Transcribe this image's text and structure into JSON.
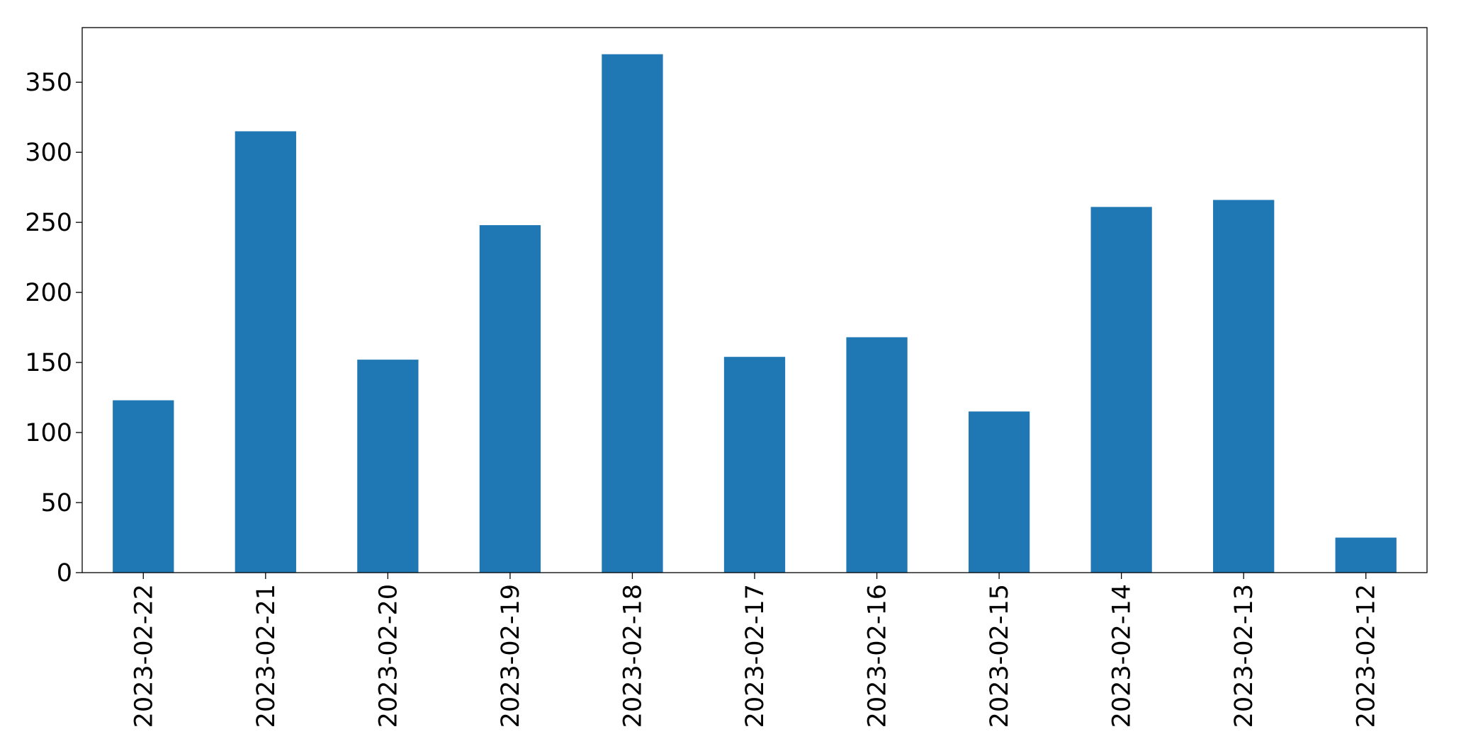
{
  "chart_data": {
    "type": "bar",
    "categories": [
      "2023-02-22",
      "2023-02-21",
      "2023-02-20",
      "2023-02-19",
      "2023-02-18",
      "2023-02-17",
      "2023-02-16",
      "2023-02-15",
      "2023-02-14",
      "2023-02-13",
      "2023-02-12"
    ],
    "values": [
      123,
      315,
      152,
      248,
      370,
      154,
      168,
      115,
      261,
      266,
      25
    ],
    "color": "#1f77b4",
    "ylim": [
      0,
      389
    ],
    "yticks": [
      0,
      50,
      100,
      150,
      200,
      250,
      300,
      350
    ],
    "grid": false
  }
}
